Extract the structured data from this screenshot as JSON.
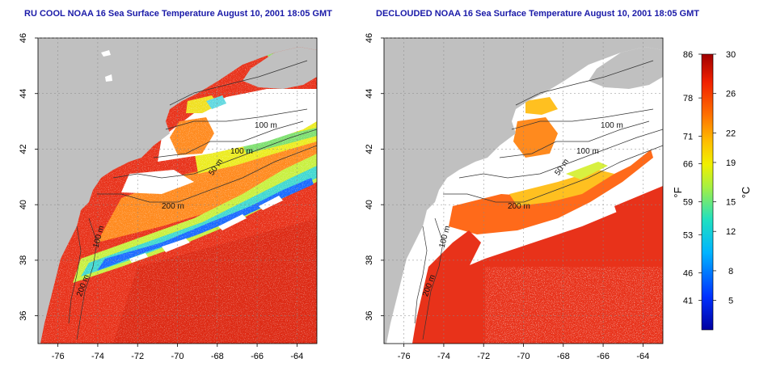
{
  "panels": [
    {
      "title": "RU COOL NOAA 16 Sea Surface Temperature August 10, 2001 18:05 GMT",
      "kind": "sst",
      "contour_labels": [
        "100 m",
        "100 m",
        "50 m",
        "200 m",
        "100 m",
        "200 m"
      ]
    },
    {
      "title": "DECLOUDED NOAA 16 Sea Surface Temperature August 10, 2001 18:05 GMT",
      "kind": "declouded",
      "contour_labels": [
        "100 m",
        "100 m",
        "50 m",
        "200 m",
        "100 m",
        "200 m"
      ]
    }
  ],
  "axes": {
    "x_ticks": [
      "-76",
      "-74",
      "-72",
      "-70",
      "-68",
      "-66",
      "-64"
    ],
    "y_ticks": [
      "36",
      "38",
      "40",
      "42",
      "44",
      "46"
    ],
    "lon_range": [
      -77,
      -63
    ],
    "lat_range": [
      35,
      46
    ]
  },
  "colorbar": {
    "f_label": "°F",
    "c_label": "°C",
    "f_ticks": [
      "86",
      "78",
      "71",
      "66",
      "59",
      "53",
      "46",
      "41"
    ],
    "c_ticks": [
      "30",
      "26",
      "22",
      "19",
      "15",
      "12",
      "8",
      "5"
    ],
    "c_range": [
      2,
      30
    ]
  },
  "colors": {
    "land": "#c0c0c0",
    "cloud": "#ffffff",
    "warm": "#e8321a",
    "title": "#1a1aa8"
  }
}
